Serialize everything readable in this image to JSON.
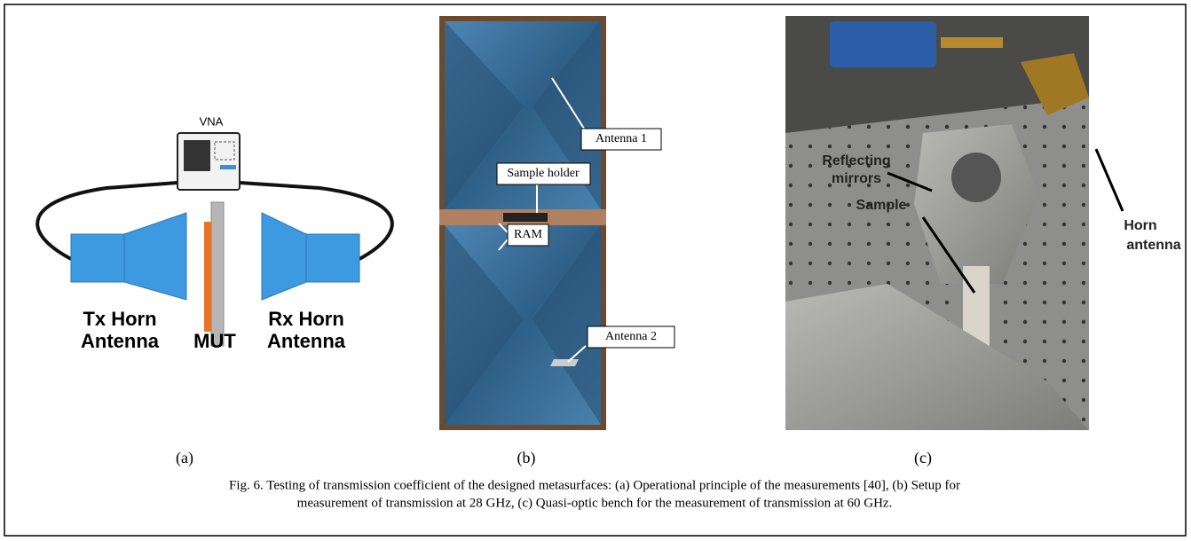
{
  "panels": [
    {
      "sublabel": "(a)",
      "labels": [
        "VNA",
        "Tx Horn",
        "Antenna",
        "MUT",
        "Rx Horn",
        "Antenna"
      ]
    },
    {
      "sublabel": "(b)",
      "labels": [
        "Antenna 1",
        "Sample holder",
        "RAM",
        "Antenna 2"
      ]
    },
    {
      "sublabel": "(c)",
      "labels": [
        "Reflecting",
        "mirrors",
        "Sample",
        "Horn",
        "antenna"
      ]
    }
  ],
  "caption": {
    "lines": [
      "Fig. 6. Testing of transmission coefficient of the designed metasurfaces: (a) Operational principle of the measurements [40], (b) Setup for",
      "measurement of transmission at 28 GHz, (c) Quasi-optic bench for the measurement of transmission at 60 GHz."
    ]
  }
}
